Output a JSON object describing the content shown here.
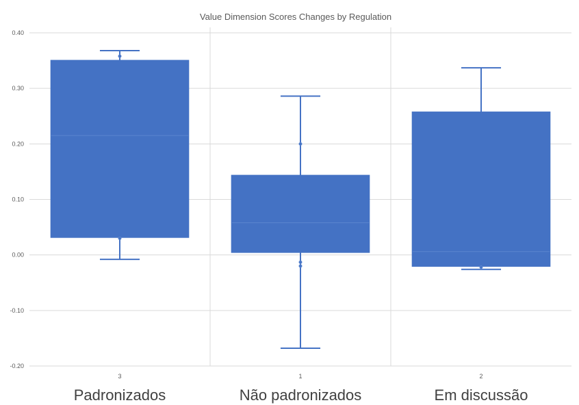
{
  "chart_data": {
    "type": "box",
    "title": "Value Dimension Scores Changes by Regulation",
    "xlabel": "",
    "ylabel": "",
    "ylim": [
      -0.2,
      0.4
    ],
    "yticks": [
      "0.40",
      "0.30",
      "0.20",
      "0.10",
      "0.00",
      "-0.10",
      "-0.20"
    ],
    "ytick_values": [
      0.4,
      0.3,
      0.2,
      0.1,
      0.0,
      -0.1,
      -0.2
    ],
    "grid": true,
    "color": "#4472c4",
    "categories": [
      "3",
      "1",
      "2"
    ],
    "category_labels": [
      "Padronizados",
      "Não padronizados",
      "Em discussão"
    ],
    "boxes": [
      {
        "category": "3",
        "label": "Padronizados",
        "min": -0.008,
        "q1": 0.032,
        "median": 0.215,
        "q3": 0.35,
        "max": 0.368,
        "points": [
          0.358,
          0.03
        ]
      },
      {
        "category": "1",
        "label": "Não padronizados",
        "min": -0.168,
        "q1": 0.005,
        "median": 0.058,
        "q3": 0.143,
        "max": 0.286,
        "points": [
          0.2,
          -0.013,
          -0.02
        ]
      },
      {
        "category": "2",
        "label": "Em discussão",
        "min": -0.026,
        "q1": -0.02,
        "median": 0.006,
        "q3": 0.257,
        "max": 0.337,
        "points": [
          -0.022
        ]
      }
    ]
  }
}
